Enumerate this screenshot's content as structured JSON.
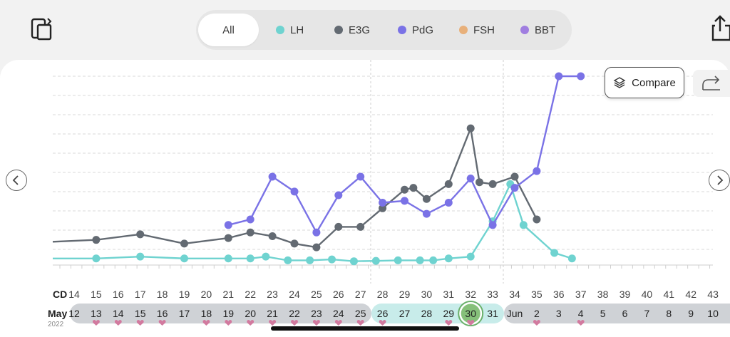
{
  "filters": {
    "all": "All",
    "items": [
      {
        "label": "LH",
        "color": "#6fd3d0"
      },
      {
        "label": "E3G",
        "color": "#636a72"
      },
      {
        "label": "PdG",
        "color": "#7a72e6"
      },
      {
        "label": "FSH",
        "color": "#e8b07a"
      },
      {
        "label": "BBT",
        "color": "#a07ee0"
      }
    ]
  },
  "compare_label": "Compare",
  "axis": {
    "cd_label": "CD",
    "month_label": "May",
    "year_label": "2022",
    "jun_label": "Jun"
  },
  "chart_data": {
    "type": "line",
    "cycle_days": [
      14,
      15,
      16,
      17,
      18,
      19,
      20,
      21,
      22,
      23,
      24,
      25,
      26,
      27,
      28,
      29,
      30,
      31,
      32,
      33,
      34,
      35,
      36,
      37,
      38,
      39,
      40,
      41,
      42,
      43
    ],
    "dates": [
      "12",
      "13",
      "14",
      "15",
      "16",
      "17",
      "18",
      "19",
      "20",
      "21",
      "22",
      "23",
      "24",
      "25",
      "26",
      "27",
      "28",
      "29",
      "30",
      "31",
      "Jun",
      "2",
      "3",
      "4",
      "5",
      "6",
      "7",
      "8",
      "9",
      "10"
    ],
    "current_date": "30",
    "fertile_window": [
      "26",
      "31"
    ],
    "intercourse_days": [
      "13",
      "14",
      "15",
      "16",
      "18",
      "19",
      "20",
      "21",
      "22",
      "23",
      "24",
      "25",
      "26",
      "29",
      "30",
      "2",
      "4"
    ],
    "series": [
      {
        "name": "LH",
        "color": "#6fd3d0",
        "points": [
          [
            13,
            2
          ],
          [
            15,
            3
          ],
          [
            17,
            2
          ],
          [
            19,
            2
          ],
          [
            20,
            2
          ],
          [
            20.7,
            3
          ],
          [
            21.7,
            1
          ],
          [
            22.7,
            1
          ],
          [
            23.7,
            1.5
          ],
          [
            24.7,
            0.5
          ],
          [
            25.7,
            0.7
          ],
          [
            26.7,
            1
          ],
          [
            27.7,
            1
          ],
          [
            28.3,
            1
          ],
          [
            29,
            2
          ],
          [
            30,
            3
          ],
          [
            31,
            22
          ],
          [
            31.8,
            42
          ],
          [
            32.4,
            20
          ],
          [
            33.8,
            5
          ],
          [
            34.6,
            2
          ]
        ]
      },
      {
        "name": "E3G",
        "color": "#636a72",
        "points": [
          [
            13,
            12
          ],
          [
            15,
            15
          ],
          [
            17,
            10
          ],
          [
            19,
            13
          ],
          [
            20,
            16
          ],
          [
            21,
            14
          ],
          [
            22,
            10
          ],
          [
            23,
            8
          ],
          [
            24,
            19
          ],
          [
            25,
            19
          ],
          [
            26,
            29
          ],
          [
            27,
            39
          ],
          [
            27.4,
            40
          ],
          [
            28,
            34
          ],
          [
            29,
            42
          ],
          [
            30,
            72
          ],
          [
            30.4,
            43
          ],
          [
            31,
            42
          ],
          [
            32,
            46
          ],
          [
            33,
            23
          ]
        ]
      },
      {
        "name": "PdG",
        "color": "#7a72e6",
        "points": [
          [
            19,
            20
          ],
          [
            20,
            23
          ],
          [
            21,
            46
          ],
          [
            22,
            38
          ],
          [
            23,
            16
          ],
          [
            24,
            36
          ],
          [
            25,
            46
          ],
          [
            26,
            32
          ],
          [
            27,
            33
          ],
          [
            28,
            26
          ],
          [
            29,
            32
          ],
          [
            30,
            45
          ],
          [
            31,
            20
          ],
          [
            32,
            40
          ],
          [
            33,
            49
          ],
          [
            34,
            100
          ],
          [
            35,
            100
          ]
        ]
      }
    ]
  }
}
